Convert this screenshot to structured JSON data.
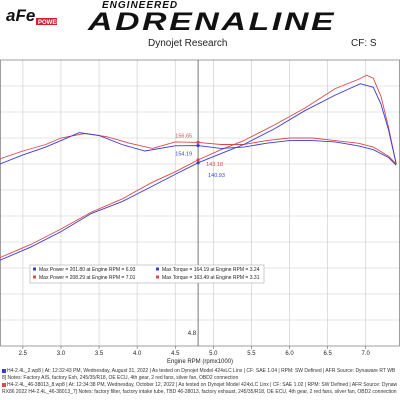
{
  "header": {
    "logo_text": "aFe POWER",
    "brand_small": "ENGINEERED",
    "brand_title": "ADRENALINE",
    "research": "Dynojet Research",
    "cf": "CF: S"
  },
  "colors": {
    "run_blue": "#3b3bcf",
    "run_red": "#d84a4a",
    "grid": "#c9c9c9",
    "cursor": "#555555"
  },
  "footer": {
    "line1": "H4-2.4L_2.wp8 | At: 12:32:43 PM, Wednesday, August 31, 2022 | As tested on Dynojet Model 424xLC Linx | CF: SAE 1.04 | RPM: SW Defined | AFR Source: Dynaware RT WB",
    "line2": "8] Notes: Factory AIS, factory Exh, 245/35/R18, OE ECU, 4th gear, 2 red fans, silver fan, OBD2 connection",
    "line3": "H4-2.4L_46-38013_8.wp8 | At: 12:34:38 PM, Wednesday, October 12, 2022 | As tested on Dynojet Model 424xLC Linx | CF: SAE 1.02 | RPM: SW Defined | AFR Source: Dynaw",
    "line4": "RX86 2022 H4-2.4L_46-38013_7] Notes: factory filter, factory intake tube, TBD 46-38013, factory exhaust, 245/35/R18, OE ECU, 4th gear, 2 red fans, silver fan, OBD2 connection"
  },
  "chart_data": {
    "type": "line",
    "title": "",
    "xlabel": "Engine RPM (rpmx1000)",
    "ylabel": "",
    "xlim": [
      2.2,
      7.45
    ],
    "ylim": [
      0,
      220
    ],
    "x_ticks": [
      "2.5",
      "3.0",
      "3.5",
      "4.0",
      "4.5",
      "5.0",
      "5.5",
      "6.0",
      "6.5",
      "7.0"
    ],
    "grid": true,
    "cursor": {
      "x": 4.8,
      "label": "4.8"
    },
    "annotations": {
      "hp_at_cursor_red": "143.18",
      "hp_at_cursor_blue": "140.93",
      "tq_at_cursor_red": "156.65",
      "tq_at_cursor_blue": "154.19"
    },
    "legend": {
      "placement": "bottom-center",
      "rows": [
        {
          "color": "#3b3bcf",
          "power": "Max Power = 201.80 at Engine RPM = 6.93",
          "torque": "Max Torque = 164.19 at Engine RPM = 3.24"
        },
        {
          "color": "#d84a4a",
          "power": "Max Power = 208.29 at Engine RPM = 7.01",
          "torque": "Max Torque = 163.49 at Engine RPM = 3.31"
        }
      ]
    },
    "series": [
      {
        "color": "#d84a4a",
        "power_x": [
          2.2,
          2.6,
          3.0,
          3.4,
          3.8,
          4.2,
          4.5,
          4.8,
          5.1,
          5.4,
          5.8,
          6.2,
          6.6,
          6.9,
          7.01,
          7.1,
          7.2,
          7.3,
          7.4
        ],
        "power_y": [
          68,
          78,
          90,
          103,
          113,
          126,
          134,
          143.18,
          151,
          158,
          170,
          183,
          198,
          205,
          208.29,
          206,
          192,
          168,
          140
        ],
        "torque_x": [
          2.2,
          2.5,
          2.8,
          3.0,
          3.31,
          3.6,
          3.9,
          4.2,
          4.5,
          4.8,
          5.1,
          5.4,
          5.7,
          6.0,
          6.3,
          6.6,
          6.9,
          7.1,
          7.3,
          7.4
        ],
        "torque_y": [
          144,
          150,
          155,
          160,
          163.49,
          161,
          156,
          152,
          157,
          156.65,
          155,
          155,
          158,
          160,
          160,
          158,
          156,
          153,
          146,
          140
        ]
      },
      {
        "color": "#3b3bcf",
        "power_x": [
          2.2,
          2.6,
          3.0,
          3.4,
          3.8,
          4.2,
          4.5,
          4.8,
          5.1,
          5.4,
          5.8,
          6.2,
          6.6,
          6.93,
          7.1,
          7.2,
          7.3,
          7.4
        ],
        "power_y": [
          66,
          76,
          88,
          102,
          111,
          123,
          132,
          140.93,
          148,
          155,
          167,
          181,
          193,
          201.8,
          199,
          186,
          166,
          140
        ],
        "torque_x": [
          2.2,
          2.5,
          2.8,
          3.0,
          3.24,
          3.5,
          3.8,
          4.1,
          4.5,
          4.8,
          5.1,
          5.4,
          5.7,
          6.0,
          6.3,
          6.6,
          6.9,
          7.1,
          7.3,
          7.4
        ],
        "torque_y": [
          140,
          147,
          153,
          158,
          164.19,
          162,
          155,
          150,
          154,
          154.19,
          152,
          153,
          156,
          158,
          158,
          157,
          154,
          151,
          145,
          139
        ]
      }
    ]
  }
}
